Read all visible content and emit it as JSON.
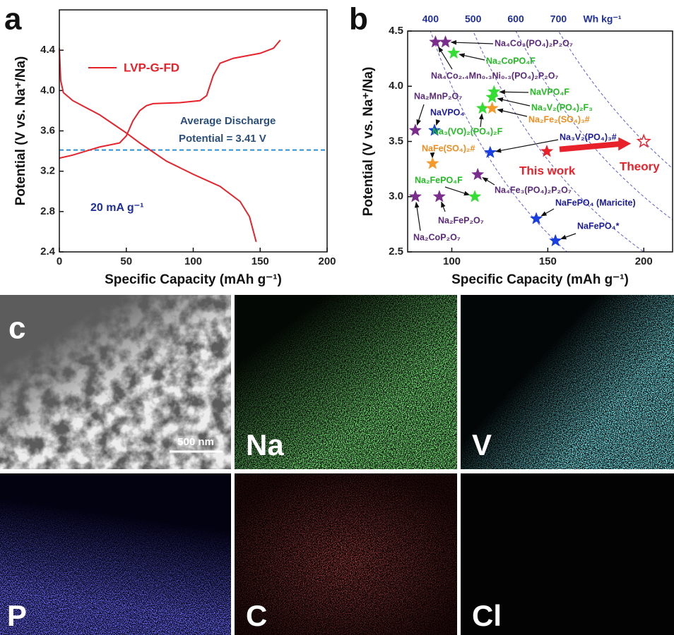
{
  "chart_data": [
    {
      "type": "line",
      "panel_label": "a",
      "x_label": "Specific Capacity (mAh g⁻¹)",
      "y_label": "Potential (V vs. Na⁺/Na)",
      "xlim": [
        0,
        200
      ],
      "xticks": [
        0,
        50,
        100,
        150,
        200
      ],
      "ylim": [
        2.4,
        4.8
      ],
      "yticks": [
        2.4,
        2.8,
        3.2,
        3.6,
        {
          "value": 4,
          "label": "4.0"
        },
        4.4
      ],
      "series": [
        {
          "name": "LVP-G-FD",
          "color": "#e8222a",
          "x": [
            0,
            10,
            20,
            30,
            45,
            50,
            55,
            60,
            65,
            70,
            90,
            105,
            110,
            115,
            120,
            130,
            150,
            160,
            165
          ],
          "values": [
            3.33,
            3.36,
            3.4,
            3.44,
            3.48,
            3.55,
            3.7,
            3.8,
            3.85,
            3.87,
            3.88,
            3.9,
            3.95,
            4.15,
            4.27,
            4.32,
            4.37,
            4.42,
            4.5
          ]
        },
        {
          "color": "#e8222a",
          "x": [
            0,
            1,
            3,
            10,
            20,
            30,
            40,
            50,
            60,
            70,
            80,
            100,
            120,
            135,
            142,
            145,
            147
          ],
          "values": [
            4.42,
            4.1,
            3.98,
            3.9,
            3.83,
            3.76,
            3.67,
            3.58,
            3.48,
            3.39,
            3.3,
            3.17,
            3.05,
            2.9,
            2.75,
            2.6,
            2.5
          ]
        }
      ],
      "reference_line": {
        "value": 3.41,
        "color": "#2a8fd6"
      },
      "annotations": [
        "Average Discharge",
        "Potential = 3.41 V",
        "20 mA g⁻¹"
      ]
    },
    {
      "type": "scatter",
      "panel_label": "b",
      "x_label": "Specific Capacity (mAh g⁻¹)",
      "y_label": "Potential (V vs. Na⁺/Na)",
      "xlim": [
        77,
        215
      ],
      "xticks": [
        100,
        150,
        200
      ],
      "ylim": [
        2.5,
        4.5
      ],
      "yticks": [
        2.5,
        {
          "value": 3,
          "label": "3.0"
        },
        3.5,
        {
          "value": 4,
          "label": "4.0"
        },
        4.5
      ],
      "energy_lines": [
        400,
        500,
        600,
        700
      ],
      "energy_unit": "Wh kg⁻¹",
      "points": [
        {
          "name": "Na₄Co₃(PO₄)₂P₂O₇",
          "x": 96.7,
          "y": 4.4,
          "color": "#7b2d8e",
          "label_color": "#5a2a7a"
        },
        {
          "name": "Na₄Co₂.₄Mn₀.₃Ni₀.₃(PO₄)₂P₂O₇",
          "x": 91.5,
          "y": 4.4,
          "color": "#7b2d8e",
          "label_color": "#5a2a7a"
        },
        {
          "name": "Na₂CoPO₄F",
          "x": 101,
          "y": 4.3,
          "color": "#33dd33",
          "label_color": "#22bb22"
        },
        {
          "name": "Na₂MnP₂O₇",
          "x": 81,
          "y": 3.6,
          "color": "#7b2d8e",
          "label_color": "#5a2a7a"
        },
        {
          "name": "NaVPO₄",
          "x": 91,
          "y": 3.6,
          "color": "#1a3fe0",
          "label_color": "#1a1a9a"
        },
        {
          "name": "NaVPO₄F",
          "x": 122,
          "y": 3.95,
          "color": "#33dd33",
          "label_color": "#22bb22"
        },
        {
          "name": "Na₃V₂(PO₄)₂F₃",
          "x": 121,
          "y": 3.9,
          "color": "#33dd33",
          "label_color": "#22bb22"
        },
        {
          "name": "Na₃(VO)₂(PO₄)₂F",
          "x": 116,
          "y": 3.8,
          "color": "#33dd33",
          "label_color": "#22bb22"
        },
        {
          "name": "Na₂Fe₂(SO₄)₃#",
          "x": 121,
          "y": 3.8,
          "color": "#f39a2a",
          "label_color": "#f08c1e"
        },
        {
          "name": "Na₃V₂(PO₄)₃#",
          "x": 120,
          "y": 3.4,
          "color": "#1a3fe0",
          "label_color": "#1a1a9a"
        },
        {
          "name": "NaFe(SO₄)₂#",
          "x": 90,
          "y": 3.3,
          "color": "#f39a2a",
          "label_color": "#f08c1e"
        },
        {
          "name": "Na₄Fe₃(PO₄)₂P₂O₇",
          "x": 113.5,
          "y": 3.2,
          "color": "#7b2d8e",
          "label_color": "#5a2a7a"
        },
        {
          "name": "Na₂FePO₄F",
          "x": 112,
          "y": 3.0,
          "color": "#33dd33",
          "label_color": "#22bb22"
        },
        {
          "name": "Na₂FeP₂O₇",
          "x": 93.5,
          "y": 3.0,
          "color": "#7b2d8e",
          "label_color": "#5a2a7a"
        },
        {
          "name": "Na₂CoP₂O₇",
          "x": 81,
          "y": 3.0,
          "color": "#7b2d8e",
          "label_color": "#5a2a7a"
        },
        {
          "name": "NaFePO₄ (Maricite)",
          "x": 144,
          "y": 2.8,
          "color": "#1a3fe0",
          "label_color": "#1a1a9a"
        },
        {
          "name": "NaFePO₄*",
          "x": 154,
          "y": 2.6,
          "color": "#1a3fe0",
          "label_color": "#1a1a9a"
        },
        {
          "name": "This work",
          "x": 149.5,
          "y": 3.41,
          "color": "#e8222a",
          "label_color": "#e8222a"
        },
        {
          "name": "Theory",
          "x": 200,
          "y": 3.5,
          "color": "#e8222a",
          "label_color": "#e8222a",
          "hollow": true
        }
      ]
    }
  ],
  "panel_c": {
    "label": "c",
    "scale_bar": "500 nm",
    "maps": [
      "Na",
      "V",
      "P",
      "C",
      "Cl"
    ]
  }
}
